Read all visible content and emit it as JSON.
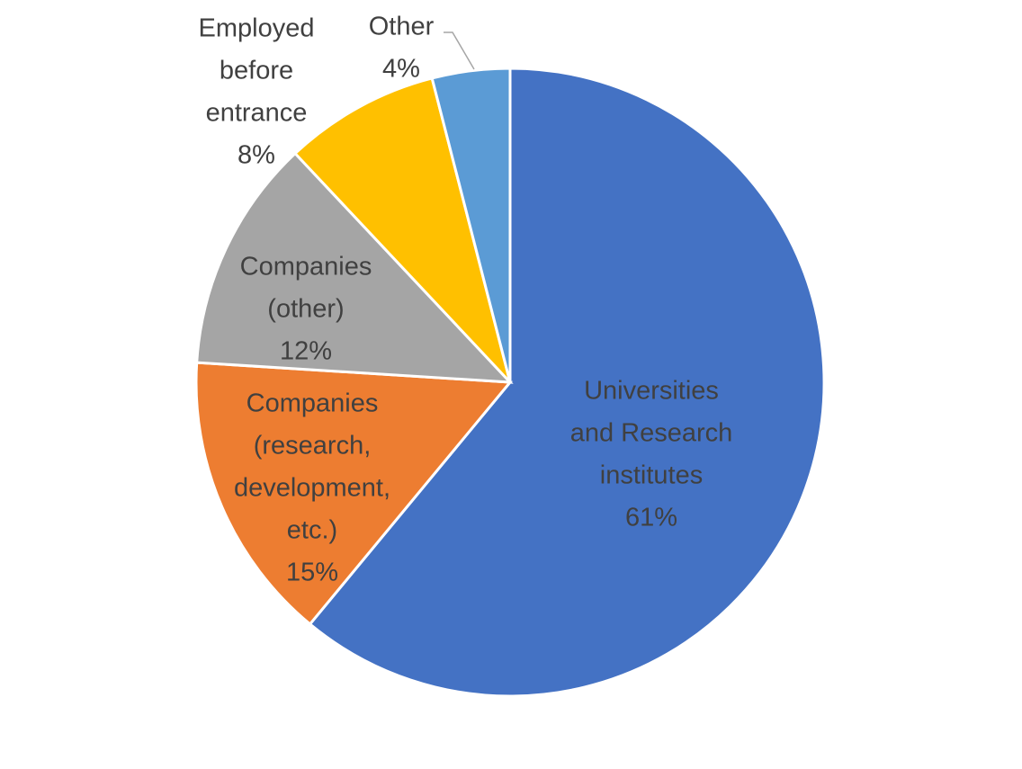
{
  "chart_data": {
    "type": "pie",
    "title": "",
    "start_angle_deg": 0,
    "direction": "clockwise",
    "legend": "none",
    "slices": [
      {
        "label_lines": [
          "Universities",
          "and Research",
          "institutes"
        ],
        "value": 61,
        "value_label": "61%",
        "color": "#4472C4"
      },
      {
        "label_lines": [
          "Companies",
          "(research,",
          "development,",
          "etc.)"
        ],
        "value": 15,
        "value_label": "15%",
        "color": "#ED7D31"
      },
      {
        "label_lines": [
          "Companies",
          "(other)"
        ],
        "value": 12,
        "value_label": "12%",
        "color": "#A5A5A5"
      },
      {
        "label_lines": [
          "Employed",
          "before",
          "entrance"
        ],
        "value": 8,
        "value_label": "8%",
        "color": "#FFC000"
      },
      {
        "label_lines": [
          "Other"
        ],
        "value": 4,
        "value_label": "4%",
        "color": "#5B9BD5"
      }
    ]
  }
}
